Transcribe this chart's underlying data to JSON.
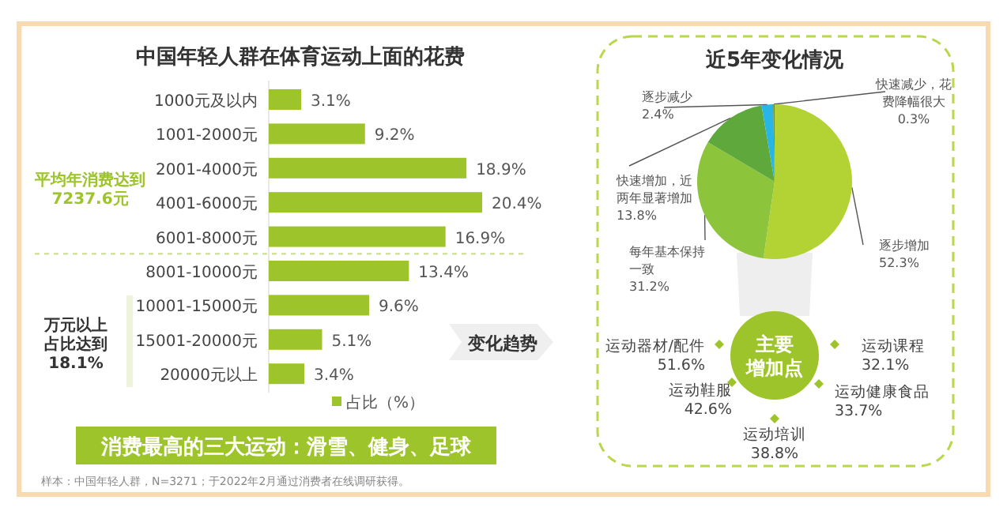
{
  "chart_data": [
    {
      "type": "bar",
      "orientation": "horizontal",
      "title": "中国年轻人群在体育运动上面的花费",
      "categories": [
        "1000元及以内",
        "1001-2000元",
        "2001-4000元",
        "4001-6000元",
        "6001-8000元",
        "8001-10000元",
        "10001-15000元",
        "15001-20000元",
        "20000元以上"
      ],
      "series": [
        {
          "name": "占比（%）",
          "color": "#9dc42a",
          "values": [
            3.1,
            9.2,
            18.9,
            20.4,
            16.9,
            13.4,
            9.6,
            5.1,
            3.4
          ],
          "value_labels": [
            "3.1%",
            "9.2%",
            "18.9%",
            "20.4%",
            "16.9%",
            "13.4%",
            "9.6%",
            "5.1%",
            "3.4%"
          ]
        }
      ],
      "legend": "bottom",
      "annotations": [
        "平均年消费达到7237.6元",
        "万元以上占比达到18.1%",
        "消费最高的三大运动：滑雪、健身、足球",
        "样本：中国年轻人群，N=3271；于2022年2月通过消费者在线调研获得。",
        "变化趋势"
      ]
    },
    {
      "type": "pie",
      "title": "近5年变化情况",
      "categories": [
        "逐步增加",
        "每年基本保持一致",
        "快速增加，近两年显著增加",
        "逐步减少",
        "快速减少，花费降幅很大"
      ],
      "values": [
        52.3,
        31.2,
        13.8,
        2.4,
        0.3
      ],
      "colors": [
        "#b3d234",
        "#8cc43c",
        "#5ea83c",
        "#27b6e6",
        "#6a8f3a"
      ],
      "value_labels": [
        "52.3%",
        "31.2%",
        "13.8%",
        "2.4%",
        "0.3%"
      ]
    },
    {
      "type": "other",
      "title": "主要增加点",
      "categories": [
        "运动器材/配件",
        "运动课程",
        "运动鞋服",
        "运动健康食品",
        "运动培训"
      ],
      "values": [
        51.6,
        32.1,
        42.6,
        33.7,
        38.8
      ],
      "value_labels": [
        "51.6%",
        "32.1%",
        "42.6%",
        "33.7%",
        "38.8%"
      ],
      "color": "#9dc42a"
    }
  ]
}
